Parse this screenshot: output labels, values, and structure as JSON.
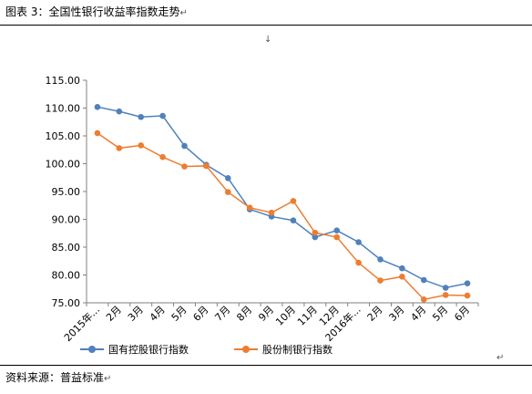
{
  "figure": {
    "title": "图表 3：全国性银行收益率指数走势",
    "source": "资料来源：普益标准"
  },
  "marks": {
    "para": "↵",
    "arrow": "↓"
  },
  "colors": {
    "series1": "#4f81bd",
    "series2": "#ed7d31",
    "axis": "#808080"
  },
  "chart_data": {
    "type": "line",
    "categories": [
      "2015年...",
      "2月",
      "3月",
      "4月",
      "5月",
      "6月",
      "7月",
      "8月",
      "9月",
      "10月",
      "11月",
      "12月",
      "2016年...",
      "2月",
      "3月",
      "4月",
      "5月",
      "6月"
    ],
    "series": [
      {
        "name": "国有控股银行指数",
        "values": [
          110.2,
          109.4,
          108.4,
          108.6,
          103.2,
          99.8,
          97.4,
          91.8,
          90.5,
          89.8,
          86.8,
          88.0,
          85.9,
          82.8,
          81.2,
          79.1,
          77.7,
          78.5
        ]
      },
      {
        "name": "股份制银行指数",
        "values": [
          105.5,
          102.8,
          103.3,
          101.2,
          99.5,
          99.6,
          94.9,
          92.1,
          91.2,
          93.3,
          87.6,
          86.8,
          82.2,
          79.0,
          79.7,
          75.6,
          76.4,
          76.3
        ]
      }
    ],
    "ylim": [
      75,
      115
    ],
    "yticks": [
      "75.00",
      "80.00",
      "85.00",
      "90.00",
      "95.00",
      "100.00",
      "105.00",
      "110.00",
      "115.00"
    ],
    "ytick_values": [
      75,
      80,
      85,
      90,
      95,
      100,
      105,
      110,
      115
    ],
    "grid": false,
    "legend": "bottom"
  }
}
